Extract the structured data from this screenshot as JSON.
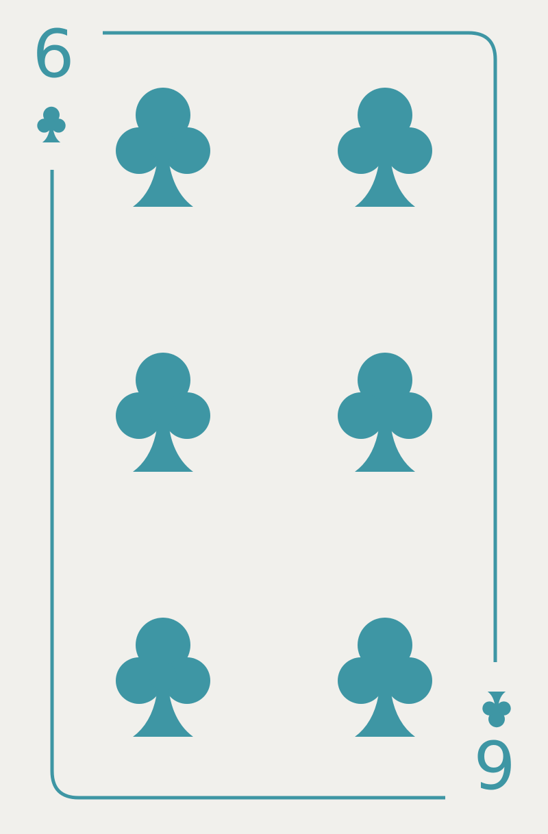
{
  "card": {
    "rank": "6",
    "suit": "clubs",
    "suit_icon": "club-icon",
    "pip_count": 6
  },
  "colors": {
    "background": "#f1f0ec",
    "ink": "#3e96a4"
  }
}
